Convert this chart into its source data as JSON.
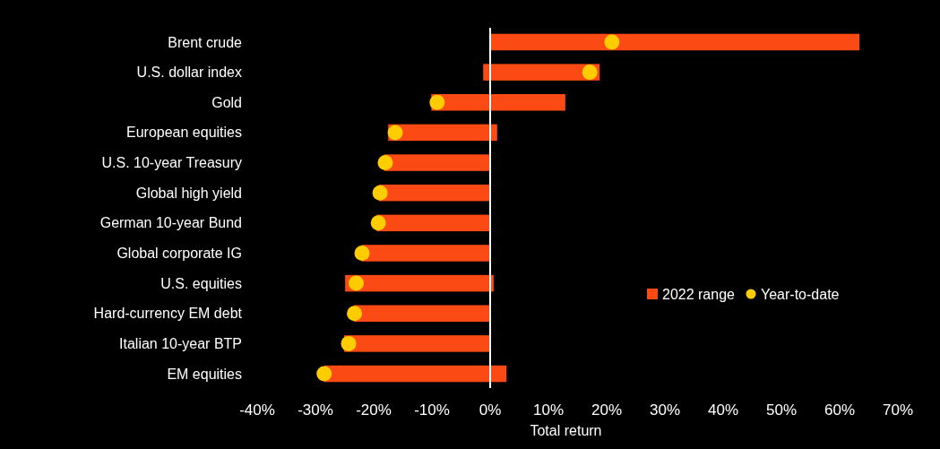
{
  "chart_data": {
    "type": "bar",
    "orientation": "horizontal",
    "xlabel": "Total return",
    "categories": [
      "Brent crude",
      "U.S. dollar index",
      "Gold",
      "European equities",
      "U.S. 10-year Treasury",
      "Global high yield",
      "German 10-year Bund",
      "Global corporate IG",
      "U.S. equities",
      "Hard-currency EM debt",
      "Italian 10-year BTP",
      "EM equities"
    ],
    "series": [
      {
        "name": "2022 range",
        "color": "#fc4a14",
        "base": [
          0,
          -1.2,
          -10.1,
          -17.5,
          -18.2,
          -19.1,
          -19.5,
          -22.1,
          -24.9,
          -23.4,
          -25.1,
          -28.5
        ],
        "values": [
          63.4,
          20.0,
          23.0,
          18.7,
          18.2,
          19.1,
          19.5,
          22.1,
          25.5,
          23.4,
          25.1,
          31.3
        ]
      },
      {
        "name": "Year-to-date",
        "type": "scatter",
        "color": "#ffcc00",
        "values": [
          20.9,
          17.1,
          -9.1,
          -16.3,
          -18.0,
          -18.9,
          -19.2,
          -22.0,
          -23.0,
          -23.3,
          -24.3,
          -28.5
        ]
      }
    ],
    "xlim": [
      -40,
      70
    ],
    "xticks": [
      {
        "value": -40,
        "label": "-40%"
      },
      {
        "value": -30,
        "label": "-30%"
      },
      {
        "value": -20,
        "label": "-20%"
      },
      {
        "value": -10,
        "label": "-10%"
      },
      {
        "value": 0,
        "label": "0%"
      },
      {
        "value": 10,
        "label": "10%"
      },
      {
        "value": 20,
        "label": "20%"
      },
      {
        "value": 30,
        "label": "30%"
      },
      {
        "value": 40,
        "label": "40%"
      },
      {
        "value": 50,
        "label": "50%"
      },
      {
        "value": 60,
        "label": "60%"
      },
      {
        "value": 70,
        "label": "70%"
      }
    ],
    "ref_lines": [
      {
        "axis": "x",
        "value": 0,
        "color": "#ffffff"
      }
    ],
    "legend": "right"
  }
}
